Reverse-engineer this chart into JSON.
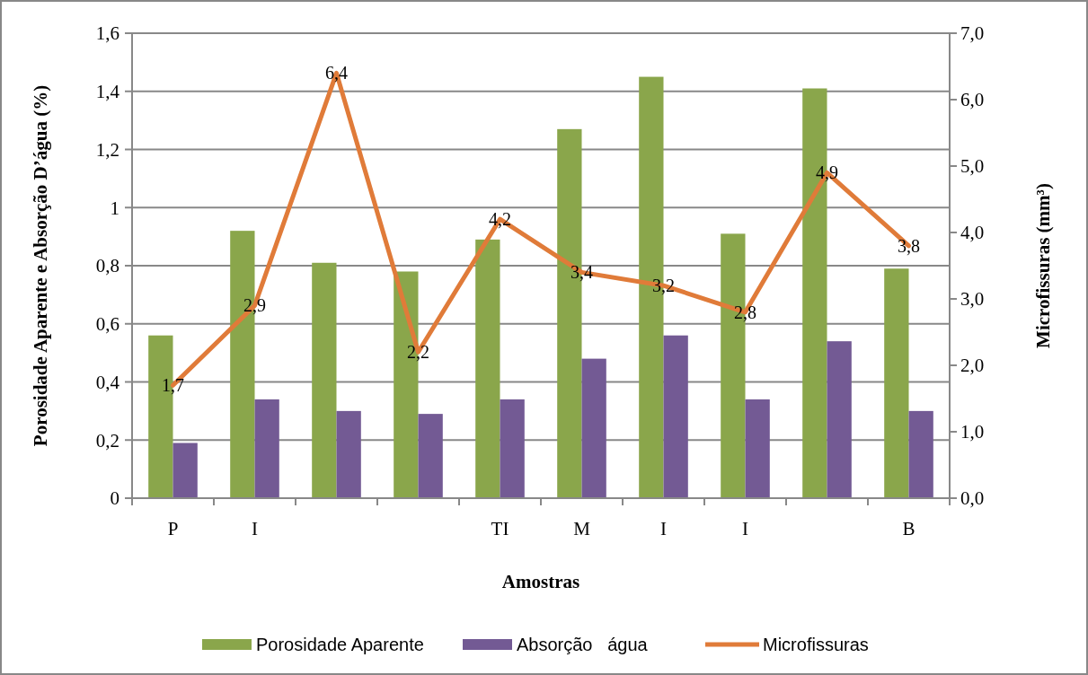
{
  "chart_data": {
    "type": "bar",
    "xlabel": "Amostras",
    "ylabel": "Porosidade Aparente e Absorção D’água (%)",
    "y2label": "Microfissuras (mm³)",
    "categories": [
      "P",
      "I",
      null,
      null,
      "TI",
      "M",
      "I",
      "I",
      null,
      "B"
    ],
    "series": [
      {
        "name": "Porosidade Aparente",
        "color": "#8aa64b",
        "values": [
          0.56,
          0.92,
          0.81,
          0.78,
          0.89,
          1.27,
          1.45,
          0.91,
          1.41,
          0.79
        ]
      },
      {
        "name": "Absorção   água",
        "color": "#735a94",
        "values": [
          0.19,
          0.34,
          0.3,
          0.29,
          0.34,
          0.48,
          0.56,
          0.34,
          0.54,
          0.3
        ]
      },
      {
        "name": "Microfissuras",
        "type": "line",
        "axis": "y2",
        "color": "#e07b39",
        "data_labels": true,
        "values": [
          1.7,
          2.9,
          6.4,
          2.2,
          4.2,
          3.4,
          3.2,
          2.8,
          4.9,
          3.8
        ],
        "value_labels": [
          "1,7",
          "2,9",
          "6,4",
          "2,2",
          "4,2",
          "3,4",
          "3,2",
          "2,8",
          "4,9",
          "3,8"
        ]
      }
    ],
    "ylim": [
      0,
      1.6
    ],
    "yticks": [
      0,
      {
        "value": 0.2,
        "label": "0,2"
      },
      {
        "value": 0.4,
        "label": "0,4"
      },
      {
        "value": 0.6,
        "label": "0,6"
      },
      {
        "value": 0.8,
        "label": "0,8"
      },
      1,
      {
        "value": 1.2,
        "label": "1,2"
      },
      {
        "value": 1.4,
        "label": "1,4"
      },
      {
        "value": 1.6,
        "label": "1,6"
      }
    ],
    "y2lim": [
      0,
      7
    ],
    "y2ticks": [
      {
        "value": 0,
        "label": "0,0"
      },
      {
        "value": 1,
        "label": "1,0"
      },
      {
        "value": 2,
        "label": "2,0"
      },
      {
        "value": 3,
        "label": "3,0"
      },
      {
        "value": 4,
        "label": "4,0"
      },
      {
        "value": 5,
        "label": "5,0"
      },
      {
        "value": 6,
        "label": "6,0"
      },
      {
        "value": 7,
        "label": "7,0"
      }
    ],
    "grid": "y",
    "legend": "bottom",
    "marker": "none",
    "line_style": "solid"
  }
}
